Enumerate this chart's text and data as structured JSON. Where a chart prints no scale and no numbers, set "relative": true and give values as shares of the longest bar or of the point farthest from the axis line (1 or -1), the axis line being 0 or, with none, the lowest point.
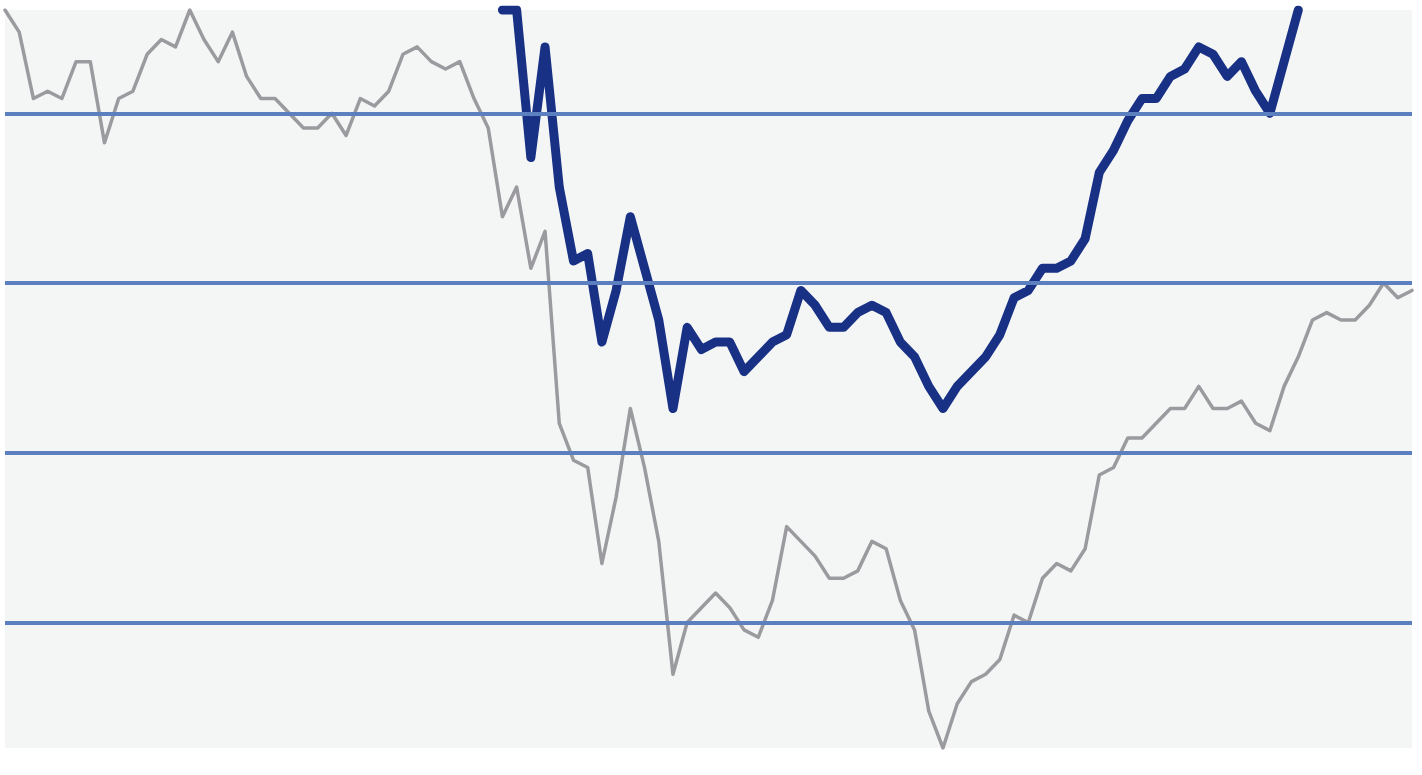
{
  "chart_data": {
    "type": "line",
    "relative": true,
    "marker": "none",
    "line_style": "solid",
    "ref_lines": [
      {
        "axis": "y",
        "value": 0.86,
        "color": "#5b7fbf"
      },
      {
        "axis": "y",
        "value": 0.63,
        "color": "#5b7fbf"
      },
      {
        "axis": "y",
        "value": 0.4,
        "color": "#5b7fbf"
      },
      {
        "axis": "y",
        "value": 0.17,
        "color": "#5b7fbf"
      }
    ],
    "categories": [
      null,
      null,
      null,
      null,
      null,
      null,
      null,
      null,
      null,
      null,
      null,
      null,
      null,
      null,
      null,
      null,
      null,
      null,
      null,
      null,
      null,
      null,
      null,
      null,
      null,
      null,
      null,
      null,
      null,
      null,
      null,
      null,
      null,
      null,
      null,
      null,
      null,
      null,
      null,
      null,
      null,
      null,
      null,
      null,
      null,
      null,
      null,
      null,
      null,
      null,
      null,
      null,
      null,
      null,
      null,
      null,
      null,
      null,
      null,
      null,
      null,
      null,
      null,
      null,
      null,
      null,
      null,
      null,
      null,
      null,
      null,
      null,
      null,
      null,
      null,
      null,
      null,
      null,
      null,
      null,
      null,
      null,
      null,
      null,
      null,
      null,
      null,
      null,
      null,
      null,
      null,
      null,
      null,
      null,
      null,
      null,
      null,
      null,
      null,
      null
    ],
    "series": [
      {
        "color": "#9b9b9f",
        "values": [
          1.0,
          0.97,
          0.88,
          0.89,
          0.88,
          0.93,
          0.93,
          0.82,
          0.88,
          0.89,
          0.94,
          0.96,
          0.95,
          1.0,
          0.96,
          0.93,
          0.97,
          0.91,
          0.88,
          0.88,
          0.86,
          0.84,
          0.84,
          0.86,
          0.83,
          0.88,
          0.87,
          0.89,
          0.94,
          0.95,
          0.93,
          0.92,
          0.93,
          0.88,
          0.84,
          0.72,
          0.76,
          0.65,
          0.7,
          0.44,
          0.39,
          0.38,
          0.25,
          0.34,
          0.46,
          0.38,
          0.28,
          0.1,
          0.17,
          0.19,
          0.21,
          0.19,
          0.16,
          0.15,
          0.2,
          0.3,
          0.28,
          0.26,
          0.23,
          0.23,
          0.24,
          0.28,
          0.27,
          0.2,
          0.16,
          0.05,
          0.0,
          0.06,
          0.09,
          0.1,
          0.12,
          0.18,
          0.17,
          0.23,
          0.25,
          0.24,
          0.27,
          0.37,
          0.38,
          0.42,
          0.42,
          0.44,
          0.46,
          0.46,
          0.49,
          0.46,
          0.46,
          0.47,
          0.44,
          0.43,
          0.49,
          0.53,
          0.58,
          0.59,
          0.58,
          0.58,
          0.6,
          0.63,
          0.61,
          0.62
        ]
      },
      {
        "color": "#183185",
        "values": [
          null,
          null,
          null,
          null,
          null,
          null,
          null,
          null,
          null,
          null,
          null,
          null,
          null,
          null,
          null,
          null,
          null,
          null,
          null,
          null,
          null,
          null,
          null,
          null,
          null,
          null,
          null,
          null,
          null,
          null,
          null,
          null,
          null,
          null,
          null,
          1.0,
          1.0,
          0.8,
          0.95,
          0.76,
          0.66,
          0.67,
          0.55,
          0.62,
          0.72,
          0.65,
          0.58,
          0.46,
          0.57,
          0.54,
          0.55,
          0.55,
          0.51,
          0.53,
          0.55,
          0.56,
          0.62,
          0.6,
          0.57,
          0.57,
          0.59,
          0.6,
          0.59,
          0.55,
          0.53,
          0.49,
          0.46,
          0.49,
          0.51,
          0.53,
          0.56,
          0.61,
          0.62,
          0.65,
          0.65,
          0.66,
          0.69,
          0.78,
          0.81,
          0.85,
          0.88,
          0.88,
          0.91,
          0.92,
          0.95,
          0.94,
          0.91,
          0.93,
          0.89,
          0.86,
          0.93,
          1.0,
          null,
          null,
          null,
          null,
          null,
          null,
          null,
          null
        ]
      }
    ]
  }
}
